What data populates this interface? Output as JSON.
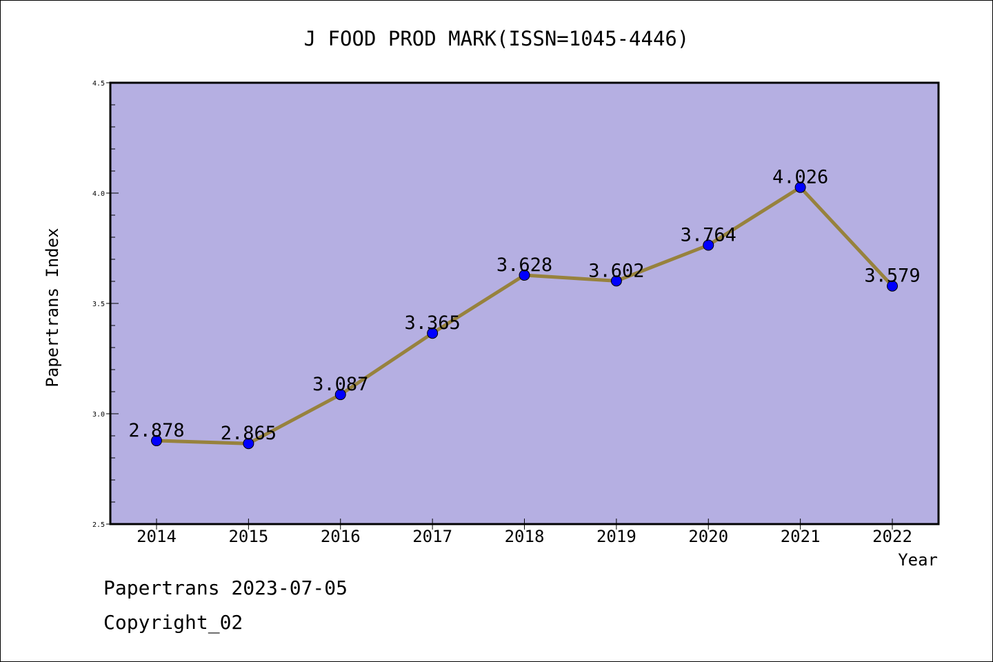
{
  "chart_data": {
    "type": "line",
    "title": "J FOOD PROD MARK(ISSN=1045-4446)",
    "xlabel": "Year",
    "ylabel": "Papertrans Index",
    "categories": [
      "2014",
      "2015",
      "2016",
      "2017",
      "2018",
      "2019",
      "2020",
      "2021",
      "2022"
    ],
    "series": [
      {
        "values": [
          2.878,
          2.865,
          3.087,
          3.365,
          3.628,
          3.602,
          3.764,
          4.026,
          3.579
        ],
        "labels": [
          "2.878",
          "2.865",
          "3.087",
          "3.365",
          "3.628",
          "3.602",
          "3.764",
          "4.026",
          "3.579"
        ]
      }
    ],
    "ylim": [
      2.5,
      4.5
    ],
    "yticks": [
      "2.5",
      "3.0",
      "3.5",
      "4.0",
      "4.5"
    ],
    "grid": false,
    "legend": "none",
    "colors": {
      "plot_background": "#b5afe2",
      "line": "#97823d",
      "marker": "#0000ff"
    }
  },
  "footer": {
    "line1": "Papertrans 2023-07-05",
    "line2": "Copyright_02"
  }
}
